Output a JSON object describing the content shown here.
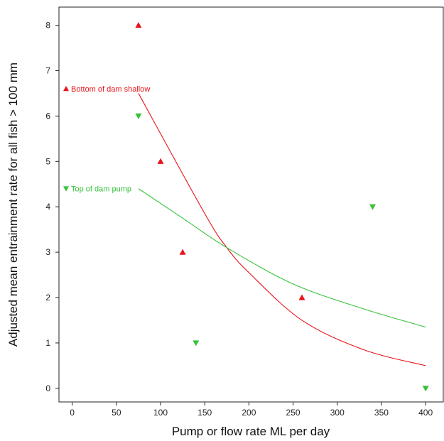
{
  "chart_data": {
    "type": "scatter",
    "title": "",
    "xlabel": "Pump or flow rate ML per day",
    "ylabel": "Adjusted mean entrainment rate for all fish > 100 mm",
    "xlim": [
      -15,
      420
    ],
    "ylim": [
      -0.3,
      8.4
    ],
    "xticks": [
      0,
      50,
      100,
      150,
      200,
      250,
      300,
      350,
      400
    ],
    "yticks": [
      0,
      1,
      2,
      3,
      4,
      5,
      6,
      7,
      8
    ],
    "grid": false,
    "legend_position": "top-left",
    "series": [
      {
        "name": "Bottom of dam shallow",
        "marker": "triangle-up",
        "color": "#e8141b",
        "points": [
          [
            75,
            8
          ],
          [
            100,
            5
          ],
          [
            125,
            3
          ],
          [
            260,
            2
          ]
        ],
        "fit": {
          "x_from": 75,
          "x_to": 400,
          "points": [
            [
              75,
              6.5
            ],
            [
              150,
              3.85
            ],
            [
              175,
              3.1
            ],
            [
              200,
              2.55
            ],
            [
              260,
              1.5
            ],
            [
              330,
              0.85
            ],
            [
              400,
              0.5
            ]
          ]
        }
      },
      {
        "name": "Top of dam pump",
        "marker": "triangle-down",
        "color": "#36c23a",
        "points": [
          [
            75,
            6
          ],
          [
            140,
            1
          ],
          [
            340,
            4
          ],
          [
            400,
            0
          ]
        ],
        "fit": {
          "x_from": 75,
          "x_to": 400,
          "points": [
            [
              75,
              4.4
            ],
            [
              125,
              3.75
            ],
            [
              175,
              3.1
            ],
            [
              250,
              2.3
            ],
            [
              330,
              1.75
            ],
            [
              400,
              1.35
            ]
          ]
        }
      }
    ]
  }
}
